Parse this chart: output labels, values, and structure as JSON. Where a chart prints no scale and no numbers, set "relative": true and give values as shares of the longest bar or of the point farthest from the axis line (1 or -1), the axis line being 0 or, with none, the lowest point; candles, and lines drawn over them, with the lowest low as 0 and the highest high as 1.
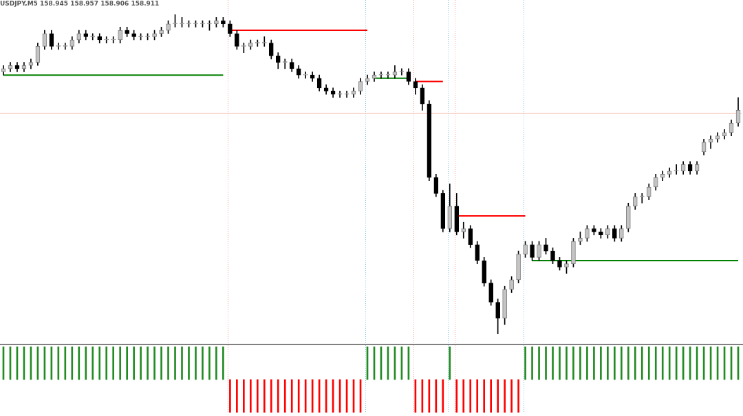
{
  "chart_data": [
    {
      "type": "candlestick",
      "title": "USDJPY,M5 158.945 158.957 158.906 158.911",
      "relative": true,
      "categories": [
        null,
        null,
        null,
        null,
        null,
        null,
        null,
        null,
        null,
        null,
        null,
        null,
        null,
        null,
        null,
        null,
        null,
        null,
        null,
        null,
        null,
        null,
        null,
        null,
        null,
        null,
        null,
        null,
        null,
        null,
        null,
        null,
        null,
        null,
        null,
        null,
        null,
        null,
        null,
        null,
        null,
        null,
        null,
        null,
        null,
        null,
        null,
        null,
        null,
        null,
        null,
        null,
        null,
        null,
        null,
        null,
        null,
        null,
        null,
        null,
        null,
        null,
        null,
        null,
        null,
        null,
        null,
        null,
        null,
        null,
        null,
        null,
        null,
        null,
        null,
        null,
        null,
        null,
        null,
        null,
        null,
        null,
        null,
        null,
        null,
        null,
        null,
        null,
        null,
        null,
        null,
        null,
        null,
        null,
        null,
        null,
        null,
        null,
        null,
        null,
        null,
        null,
        null,
        null,
        null,
        null,
        null,
        null
      ],
      "ohlc": [
        [
          0.82,
          0.84,
          0.81,
          0.83
        ],
        [
          0.83,
          0.85,
          0.82,
          0.84
        ],
        [
          0.84,
          0.85,
          0.82,
          0.83
        ],
        [
          0.83,
          0.85,
          0.82,
          0.84
        ],
        [
          0.84,
          0.86,
          0.83,
          0.85
        ],
        [
          0.85,
          0.91,
          0.84,
          0.9
        ],
        [
          0.9,
          0.95,
          0.89,
          0.94
        ],
        [
          0.94,
          0.95,
          0.89,
          0.9
        ],
        [
          0.9,
          0.91,
          0.89,
          0.9
        ],
        [
          0.9,
          0.91,
          0.89,
          0.9
        ],
        [
          0.9,
          0.93,
          0.89,
          0.92
        ],
        [
          0.92,
          0.95,
          0.91,
          0.94
        ],
        [
          0.94,
          0.95,
          0.92,
          0.93
        ],
        [
          0.93,
          0.94,
          0.92,
          0.93
        ],
        [
          0.93,
          0.94,
          0.91,
          0.92
        ],
        [
          0.92,
          0.93,
          0.91,
          0.92
        ],
        [
          0.92,
          0.93,
          0.91,
          0.92
        ],
        [
          0.92,
          0.96,
          0.91,
          0.95
        ],
        [
          0.95,
          0.96,
          0.93,
          0.94
        ],
        [
          0.94,
          0.95,
          0.92,
          0.93
        ],
        [
          0.93,
          0.94,
          0.92,
          0.93
        ],
        [
          0.93,
          0.94,
          0.92,
          0.93
        ],
        [
          0.93,
          0.95,
          0.92,
          0.94
        ],
        [
          0.94,
          0.96,
          0.93,
          0.95
        ],
        [
          0.95,
          0.98,
          0.94,
          0.97
        ],
        [
          0.97,
          1.0,
          0.96,
          0.97
        ],
        [
          0.97,
          0.99,
          0.96,
          0.97
        ],
        [
          0.97,
          0.98,
          0.96,
          0.97
        ],
        [
          0.97,
          0.98,
          0.96,
          0.97
        ],
        [
          0.97,
          0.98,
          0.96,
          0.97
        ],
        [
          0.97,
          0.98,
          0.95,
          0.97
        ],
        [
          0.97,
          0.99,
          0.96,
          0.98
        ],
        [
          0.98,
          0.99,
          0.96,
          0.97
        ],
        [
          0.97,
          0.98,
          0.93,
          0.94
        ],
        [
          0.94,
          0.95,
          0.89,
          0.9
        ],
        [
          0.9,
          0.91,
          0.88,
          0.9
        ],
        [
          0.9,
          0.92,
          0.89,
          0.91
        ],
        [
          0.91,
          0.92,
          0.9,
          0.91
        ],
        [
          0.91,
          0.93,
          0.9,
          0.91
        ],
        [
          0.91,
          0.92,
          0.86,
          0.87
        ],
        [
          0.87,
          0.88,
          0.83,
          0.85
        ],
        [
          0.85,
          0.86,
          0.83,
          0.85
        ],
        [
          0.85,
          0.86,
          0.82,
          0.83
        ],
        [
          0.83,
          0.84,
          0.8,
          0.81
        ],
        [
          0.81,
          0.82,
          0.8,
          0.81
        ],
        [
          0.81,
          0.82,
          0.79,
          0.8
        ],
        [
          0.8,
          0.81,
          0.76,
          0.77
        ],
        [
          0.77,
          0.78,
          0.75,
          0.76
        ],
        [
          0.76,
          0.77,
          0.74,
          0.75
        ],
        [
          0.75,
          0.76,
          0.74,
          0.75
        ],
        [
          0.75,
          0.76,
          0.74,
          0.75
        ],
        [
          0.75,
          0.77,
          0.74,
          0.76
        ],
        [
          0.76,
          0.8,
          0.75,
          0.79
        ],
        [
          0.79,
          0.81,
          0.78,
          0.8
        ],
        [
          0.8,
          0.82,
          0.79,
          0.81
        ],
        [
          0.81,
          0.82,
          0.8,
          0.81
        ],
        [
          0.81,
          0.82,
          0.8,
          0.81
        ],
        [
          0.81,
          0.84,
          0.8,
          0.82
        ],
        [
          0.82,
          0.83,
          0.81,
          0.82
        ],
        [
          0.82,
          0.83,
          0.78,
          0.79
        ],
        [
          0.79,
          0.8,
          0.75,
          0.77
        ],
        [
          0.77,
          0.78,
          0.7,
          0.72
        ],
        [
          0.72,
          0.73,
          0.48,
          0.49
        ],
        [
          0.49,
          0.5,
          0.43,
          0.44
        ],
        [
          0.44,
          0.45,
          0.32,
          0.33
        ],
        [
          0.33,
          0.47,
          0.32,
          0.4
        ],
        [
          0.4,
          0.44,
          0.31,
          0.32
        ],
        [
          0.32,
          0.35,
          0.3,
          0.33
        ],
        [
          0.33,
          0.34,
          0.27,
          0.28
        ],
        [
          0.28,
          0.29,
          0.22,
          0.23
        ],
        [
          0.23,
          0.24,
          0.15,
          0.16
        ],
        [
          0.16,
          0.17,
          0.09,
          0.1
        ],
        [
          0.1,
          0.11,
          0.0,
          0.05
        ],
        [
          0.05,
          0.15,
          0.03,
          0.14
        ],
        [
          0.14,
          0.18,
          0.13,
          0.17
        ],
        [
          0.17,
          0.26,
          0.16,
          0.25
        ],
        [
          0.25,
          0.29,
          0.24,
          0.28
        ],
        [
          0.28,
          0.29,
          0.23,
          0.24
        ],
        [
          0.24,
          0.29,
          0.23,
          0.28
        ],
        [
          0.28,
          0.3,
          0.25,
          0.26
        ],
        [
          0.26,
          0.27,
          0.22,
          0.23
        ],
        [
          0.23,
          0.24,
          0.2,
          0.21
        ],
        [
          0.21,
          0.23,
          0.19,
          0.22
        ],
        [
          0.22,
          0.3,
          0.21,
          0.29
        ],
        [
          0.29,
          0.32,
          0.28,
          0.3
        ],
        [
          0.3,
          0.34,
          0.29,
          0.33
        ],
        [
          0.33,
          0.34,
          0.31,
          0.32
        ],
        [
          0.32,
          0.33,
          0.3,
          0.31
        ],
        [
          0.31,
          0.34,
          0.3,
          0.33
        ],
        [
          0.33,
          0.34,
          0.29,
          0.3
        ],
        [
          0.3,
          0.34,
          0.29,
          0.33
        ],
        [
          0.33,
          0.41,
          0.32,
          0.4
        ],
        [
          0.4,
          0.44,
          0.39,
          0.43
        ],
        [
          0.43,
          0.44,
          0.41,
          0.43
        ],
        [
          0.43,
          0.47,
          0.42,
          0.46
        ],
        [
          0.46,
          0.5,
          0.45,
          0.49
        ],
        [
          0.49,
          0.51,
          0.48,
          0.5
        ],
        [
          0.5,
          0.52,
          0.49,
          0.51
        ],
        [
          0.51,
          0.53,
          0.5,
          0.51
        ],
        [
          0.51,
          0.54,
          0.5,
          0.53
        ],
        [
          0.53,
          0.54,
          0.5,
          0.51
        ],
        [
          0.51,
          0.54,
          0.5,
          0.53
        ],
        [
          0.57,
          0.61,
          0.56,
          0.6
        ],
        [
          0.6,
          0.62,
          0.58,
          0.61
        ],
        [
          0.61,
          0.63,
          0.6,
          0.62
        ],
        [
          0.62,
          0.64,
          0.61,
          0.63
        ],
        [
          0.63,
          0.67,
          0.62,
          0.66
        ],
        [
          0.66,
          0.74,
          0.65,
          0.7
        ]
      ],
      "series": [
        {
          "type": "line",
          "color": "#ff0000",
          "values": [
            null,
            null,
            null,
            null,
            null,
            null,
            null,
            null,
            null,
            null,
            null,
            null,
            null,
            null,
            null,
            null,
            null,
            null,
            null,
            null,
            null,
            null,
            null,
            null,
            null,
            null,
            null,
            null,
            null,
            null,
            null,
            null,
            null,
            0.95,
            0.95,
            0.95,
            0.95,
            0.95,
            0.95,
            0.95,
            0.95,
            0.95,
            0.95,
            0.95,
            0.95,
            0.95,
            0.95,
            0.95,
            0.95,
            0.95,
            0.95,
            0.95,
            0.95,
            0.95,
            null,
            null,
            null,
            null,
            null,
            null,
            0.79,
            0.79,
            0.79,
            0.79,
            0.79,
            null,
            0.37,
            0.37,
            0.37,
            0.37,
            0.37,
            0.37,
            0.37,
            0.37,
            0.37,
            0.37,
            0.37,
            null,
            null,
            null,
            null,
            null,
            null,
            null,
            null,
            null,
            null,
            null,
            null,
            null,
            null,
            null,
            null,
            null,
            null,
            null,
            null,
            null,
            null,
            null,
            null,
            null,
            null,
            null,
            null,
            null,
            null,
            null
          ]
        },
        {
          "type": "line",
          "color": "#008000",
          "values": [
            0.81,
            0.81,
            0.81,
            0.81,
            0.81,
            0.81,
            0.81,
            0.81,
            0.81,
            0.81,
            0.81,
            0.81,
            0.81,
            0.81,
            0.81,
            0.81,
            0.81,
            0.81,
            0.81,
            0.81,
            0.81,
            0.81,
            0.81,
            0.81,
            0.81,
            0.81,
            0.81,
            0.81,
            0.81,
            0.81,
            0.81,
            0.81,
            0.81,
            null,
            null,
            null,
            null,
            null,
            null,
            null,
            null,
            null,
            null,
            null,
            null,
            null,
            null,
            null,
            null,
            null,
            null,
            null,
            null,
            null,
            0.8,
            0.8,
            0.8,
            0.8,
            0.8,
            0.8,
            null,
            null,
            null,
            null,
            null,
            null,
            null,
            null,
            null,
            null,
            null,
            null,
            null,
            null,
            null,
            null,
            null,
            0.23,
            0.23,
            0.23,
            0.23,
            0.23,
            0.23,
            0.23,
            0.23,
            0.23,
            0.23,
            0.23,
            0.23,
            0.23,
            0.23,
            0.23,
            0.23,
            0.23,
            0.23,
            0.23,
            0.23,
            0.23,
            0.23,
            0.23,
            0.23,
            0.23,
            0.23,
            0.23,
            0.23,
            0.23,
            0.23,
            0.23
          ]
        }
      ],
      "ref_lines": [
        {
          "axis": "y",
          "value": 0.69,
          "color": "#f2b8a8",
          "line_style": "solid"
        }
      ]
    },
    {
      "type": "bar",
      "relative": true,
      "categories": [
        null,
        null,
        null,
        null,
        null,
        null,
        null,
        null,
        null,
        null,
        null,
        null,
        null,
        null,
        null,
        null,
        null,
        null,
        null,
        null,
        null,
        null,
        null,
        null,
        null,
        null,
        null,
        null,
        null,
        null,
        null,
        null,
        null,
        null,
        null,
        null,
        null,
        null,
        null,
        null,
        null,
        null,
        null,
        null,
        null,
        null,
        null,
        null,
        null,
        null,
        null,
        null,
        null,
        null,
        null,
        null,
        null,
        null,
        null,
        null,
        null,
        null,
        null,
        null,
        null,
        null,
        null,
        null,
        null,
        null,
        null,
        null,
        null,
        null,
        null,
        null,
        null,
        null,
        null,
        null,
        null,
        null,
        null,
        null,
        null,
        null,
        null,
        null,
        null,
        null,
        null,
        null,
        null,
        null,
        null,
        null,
        null,
        null,
        null,
        null,
        null,
        null,
        null,
        null,
        null,
        null,
        null,
        null
      ],
      "values": [
        1,
        1,
        1,
        1,
        1,
        1,
        1,
        1,
        1,
        1,
        1,
        1,
        1,
        1,
        1,
        1,
        1,
        1,
        1,
        1,
        1,
        1,
        1,
        1,
        1,
        1,
        1,
        1,
        1,
        1,
        1,
        1,
        1,
        -1,
        -1,
        -1,
        -1,
        -1,
        -1,
        -1,
        -1,
        -1,
        -1,
        -1,
        -1,
        -1,
        -1,
        -1,
        -1,
        -1,
        -1,
        -1,
        -1,
        1,
        1,
        1,
        1,
        1,
        1,
        1,
        -1,
        -1,
        -1,
        -1,
        -1,
        1,
        -1,
        -1,
        -1,
        -1,
        -1,
        -1,
        -1,
        -1,
        -1,
        -1,
        1,
        1,
        1,
        1,
        1,
        1,
        1,
        1,
        1,
        1,
        1,
        1,
        1,
        1,
        1,
        1,
        1,
        1,
        1,
        1,
        1,
        1,
        1,
        1,
        1,
        1,
        1,
        1,
        1,
        1,
        1,
        1
      ],
      "colors": [
        "#228b22",
        "#228b22",
        "#228b22",
        "#228b22",
        "#228b22",
        "#228b22",
        "#228b22",
        "#228b22",
        "#228b22",
        "#228b22",
        "#228b22",
        "#228b22",
        "#228b22",
        "#228b22",
        "#228b22",
        "#228b22",
        "#228b22",
        "#228b22",
        "#228b22",
        "#228b22",
        "#228b22",
        "#228b22",
        "#228b22",
        "#228b22",
        "#228b22",
        "#228b22",
        "#228b22",
        "#228b22",
        "#228b22",
        "#228b22",
        "#228b22",
        "#228b22",
        "#228b22",
        "#ff0000",
        "#ff0000",
        "#ff0000",
        "#ff0000",
        "#ff0000",
        "#ff0000",
        "#ff0000",
        "#ff0000",
        "#ff0000",
        "#ff0000",
        "#ff0000",
        "#ff0000",
        "#ff0000",
        "#ff0000",
        "#ff0000",
        "#ff0000",
        "#ff0000",
        "#ff0000",
        "#ff0000",
        "#ff0000",
        "#228b22",
        "#228b22",
        "#228b22",
        "#228b22",
        "#228b22",
        "#228b22",
        "#228b22",
        "#ff0000",
        "#ff0000",
        "#ff0000",
        "#ff0000",
        "#ff0000",
        "#228b22",
        "#ff0000",
        "#ff0000",
        "#ff0000",
        "#ff0000",
        "#ff0000",
        "#ff0000",
        "#ff0000",
        "#ff0000",
        "#ff0000",
        "#ff0000",
        "#228b22",
        "#228b22",
        "#228b22",
        "#228b22",
        "#228b22",
        "#228b22",
        "#228b22",
        "#228b22",
        "#228b22",
        "#228b22",
        "#228b22",
        "#228b22",
        "#228b22",
        "#228b22",
        "#228b22",
        "#228b22",
        "#228b22",
        "#228b22",
        "#228b22",
        "#228b22",
        "#228b22",
        "#228b22",
        "#228b22",
        "#228b22",
        "#228b22",
        "#228b22",
        "#228b22",
        "#228b22",
        "#228b22",
        "#228b22",
        "#228b22",
        "#228b22"
      ]
    }
  ]
}
